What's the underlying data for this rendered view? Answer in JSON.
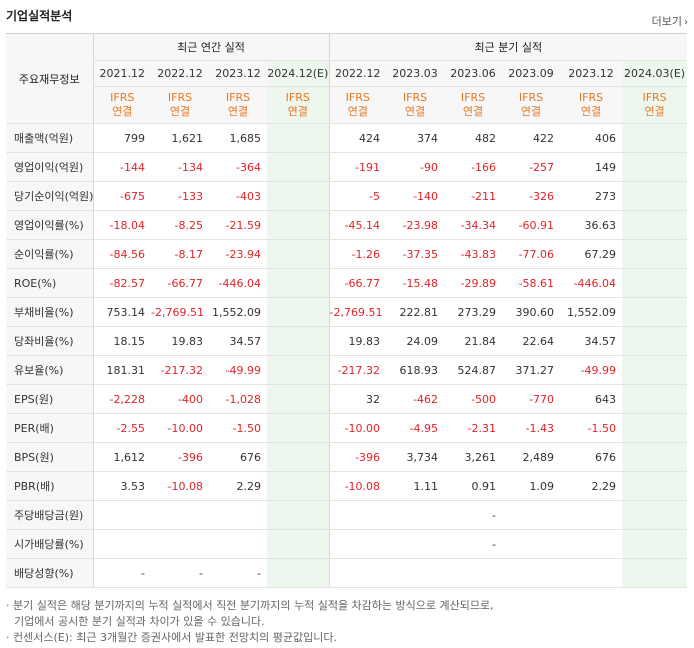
{
  "title": "기업실적분석",
  "more_label": "더보기",
  "header": {
    "row_label": "주요재무정보",
    "annual_group": "최근 연간 실적",
    "quarter_group": "최근 분기 실적",
    "annual_periods": [
      "2021.12",
      "2022.12",
      "2023.12",
      "2024.12(E)"
    ],
    "quarter_periods": [
      "2022.12",
      "2023.03",
      "2023.06",
      "2023.09",
      "2023.12",
      "2024.03(E)"
    ],
    "basis_line1": "IFRS",
    "basis_line2": "연결"
  },
  "rows": [
    {
      "label": "매출액(억원)",
      "annual": [
        "799",
        "1,621",
        "1,685",
        ""
      ],
      "quarter": [
        "424",
        "374",
        "482",
        "422",
        "406",
        ""
      ]
    },
    {
      "label": "영업이익(억원)",
      "annual": [
        "-144",
        "-134",
        "-364",
        ""
      ],
      "quarter": [
        "-191",
        "-90",
        "-166",
        "-257",
        "149",
        ""
      ]
    },
    {
      "label": "당기순이익(억원)",
      "annual": [
        "-675",
        "-133",
        "-403",
        ""
      ],
      "quarter": [
        "-5",
        "-140",
        "-211",
        "-326",
        "273",
        ""
      ]
    },
    {
      "label": "영업이익률(%)",
      "annual": [
        "-18.04",
        "-8.25",
        "-21.59",
        ""
      ],
      "quarter": [
        "-45.14",
        "-23.98",
        "-34.34",
        "-60.91",
        "36.63",
        ""
      ]
    },
    {
      "label": "순이익률(%)",
      "annual": [
        "-84.56",
        "-8.17",
        "-23.94",
        ""
      ],
      "quarter": [
        "-1.26",
        "-37.35",
        "-43.83",
        "-77.06",
        "67.29",
        ""
      ]
    },
    {
      "label": "ROE(%)",
      "annual": [
        "-82.57",
        "-66.77",
        "-446.04",
        ""
      ],
      "quarter": [
        "-66.77",
        "-15.48",
        "-29.89",
        "-58.61",
        "-446.04",
        ""
      ]
    },
    {
      "label": "부채비율(%)",
      "annual": [
        "753.14",
        "-2,769.51",
        "1,552.09",
        ""
      ],
      "quarter": [
        "-2,769.51",
        "222.81",
        "273.29",
        "390.60",
        "1,552.09",
        ""
      ]
    },
    {
      "label": "당좌비율(%)",
      "annual": [
        "18.15",
        "19.83",
        "34.57",
        ""
      ],
      "quarter": [
        "19.83",
        "24.09",
        "21.84",
        "22.64",
        "34.57",
        ""
      ]
    },
    {
      "label": "유보율(%)",
      "annual": [
        "181.31",
        "-217.32",
        "-49.99",
        ""
      ],
      "quarter": [
        "-217.32",
        "618.93",
        "524.87",
        "371.27",
        "-49.99",
        ""
      ]
    },
    {
      "label": "EPS(원)",
      "annual": [
        "-2,228",
        "-400",
        "-1,028",
        ""
      ],
      "quarter": [
        "32",
        "-462",
        "-500",
        "-770",
        "643",
        ""
      ]
    },
    {
      "label": "PER(배)",
      "annual": [
        "-2.55",
        "-10.00",
        "-1.50",
        ""
      ],
      "quarter": [
        "-10.00",
        "-4.95",
        "-2.31",
        "-1.43",
        "-1.50",
        ""
      ]
    },
    {
      "label": "BPS(원)",
      "annual": [
        "1,612",
        "-396",
        "676",
        ""
      ],
      "quarter": [
        "-396",
        "3,734",
        "3,261",
        "2,489",
        "676",
        ""
      ]
    },
    {
      "label": "PBR(배)",
      "annual": [
        "3.53",
        "-10.08",
        "2.29",
        ""
      ],
      "quarter": [
        "-10.08",
        "1.11",
        "0.91",
        "1.09",
        "2.29",
        ""
      ]
    },
    {
      "label": "주당배당금(원)",
      "annual": [
        "",
        "",
        "",
        ""
      ],
      "quarter": [
        "",
        "",
        "-",
        "",
        "",
        ""
      ]
    },
    {
      "label": "시가배당률(%)",
      "annual": [
        "",
        "",
        "",
        ""
      ],
      "quarter": [
        "",
        "",
        "-",
        "",
        "",
        ""
      ]
    },
    {
      "label": "배당성향(%)",
      "annual": [
        "-",
        "-",
        "-",
        ""
      ],
      "quarter": [
        "",
        "",
        "",
        "",
        "",
        ""
      ]
    }
  ],
  "notes": [
    "· 분기 실적은 해당 분기까지의 누적 실적에서 직전 분기까지의 누적 실적을 차감하는 방식으로 계산되므로,",
    "  기업에서 공시한 분기 실적과 차이가 있을 수 있습니다.",
    "· 컨센서스(E): 최근 3개월간 증권사에서 발표한 전망치의 평균값입니다."
  ],
  "colors": {
    "negative": "#e0242a",
    "ifrs": "#e87722",
    "estimate_bg": "#eef7ee"
  }
}
